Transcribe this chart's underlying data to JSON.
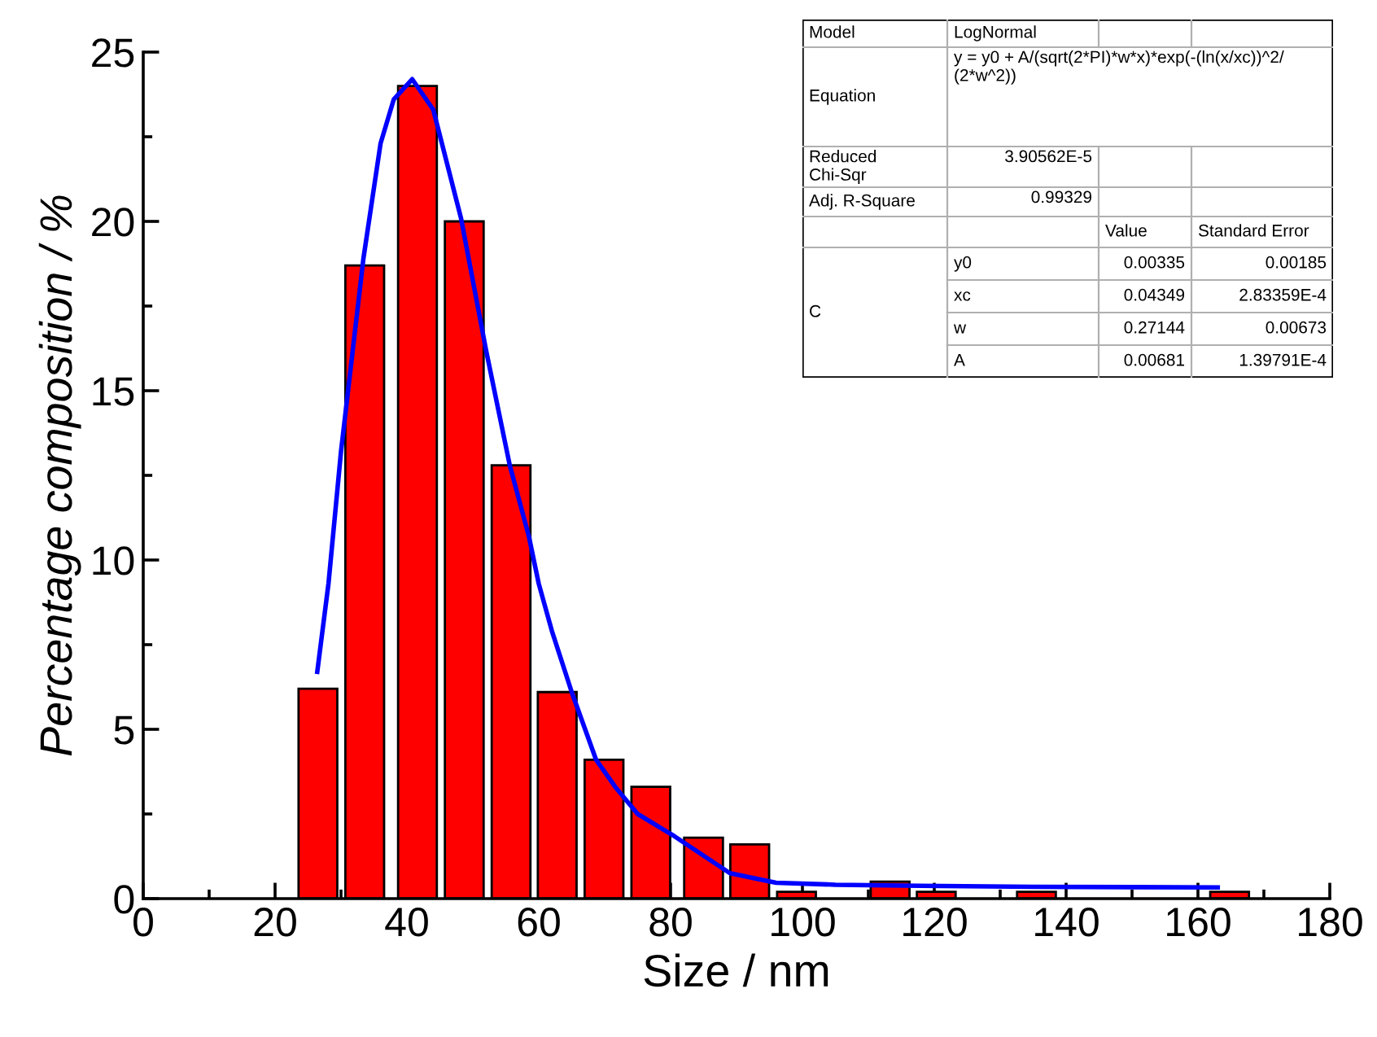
{
  "chart_data": {
    "type": "bar",
    "xlabel": "Size / nm",
    "ylabel": "Percentage composition / %",
    "xlim": [
      0,
      180
    ],
    "xticks": [
      0,
      20,
      40,
      60,
      80,
      100,
      120,
      140,
      160,
      180
    ],
    "ylim": [
      0,
      25
    ],
    "yticks": [
      0,
      5,
      10,
      15,
      20,
      25
    ],
    "grid": false,
    "series": [
      {
        "color": "#ff0000",
        "x": [
          26.5,
          33.6,
          41.6,
          48.7,
          55.8,
          62.8,
          69.9,
          77.0,
          85.0,
          92.0,
          99.1,
          113.3,
          120.3,
          135.5,
          164.8
        ],
        "values": [
          6.2,
          18.7,
          24.0,
          20.0,
          12.8,
          6.1,
          4.1,
          3.3,
          1.8,
          1.6,
          0.2,
          0.5,
          0.2,
          0.2,
          0.2
        ]
      },
      {
        "type": "line",
        "color": "#0000ff",
        "marker": "none",
        "x": [
          26.4,
          28.1,
          30,
          33.4,
          36,
          38,
          40.8,
          44,
          48.2,
          52,
          55.6,
          58.5,
          60,
          62,
          65,
          68.7,
          71.6,
          75,
          80.6,
          89,
          96,
          105,
          117.8,
          135,
          150,
          163
        ],
        "values": [
          6.7,
          9.3,
          13.2,
          18.9,
          22.3,
          23.6,
          24.2,
          23.3,
          20.1,
          16.2,
          12.8,
          10.7,
          9.3,
          7.9,
          6.1,
          4.1,
          3.3,
          2.5,
          1.84,
          0.75,
          0.47,
          0.41,
          0.38,
          0.35,
          0.34,
          0.33
        ]
      }
    ],
    "annotations": [
      "Model",
      "LogNormal",
      "Equation",
      "y = y0 + A/(sqrt(2*PI)*w*x)*exp(-(ln(x/xc))^2/\n(2*w^2))",
      "Reduced\nChi-Sqr",
      "3.90562E-5",
      "Adj. R-Square",
      "0.99329",
      "Value",
      "Standard Error",
      "C",
      "y0",
      "0.00335",
      "0.00185",
      "xc",
      "0.04349",
      "2.83359E-4",
      "w",
      "0.27144",
      "0.00673",
      "A",
      "0.00681",
      "1.39791E-4"
    ]
  }
}
